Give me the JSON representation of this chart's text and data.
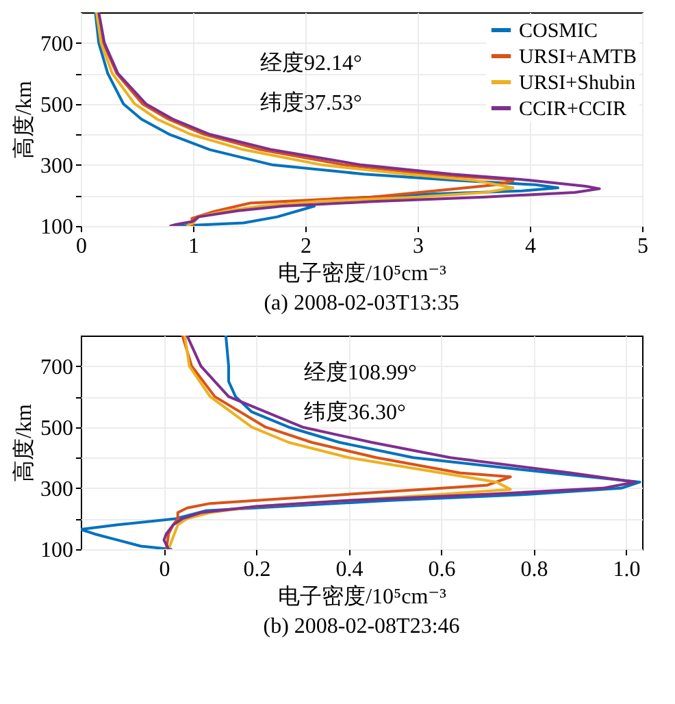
{
  "chart_data": [
    {
      "type": "line",
      "title": "(a) 2008-02-03T13:35",
      "xlabel": "电子密度/10⁵cm⁻³",
      "ylabel": "高度/km",
      "annotations": [
        "经度92.14°",
        "纬度37.53°"
      ],
      "xlim": [
        0,
        5
      ],
      "xticks": [
        0,
        1,
        2,
        3,
        4,
        5
      ],
      "ylim": [
        100,
        800
      ],
      "yticks": [
        100,
        {
          "value": 200,
          "label": null
        },
        300,
        {
          "value": 400,
          "label": null
        },
        500,
        {
          "value": 600,
          "label": null
        },
        700
      ],
      "grid": true,
      "legend": "top right",
      "line_style": "solid",
      "marker": "none",
      "series": [
        {
          "name": "COSMIC",
          "color": "#0072bd",
          "x": [
            0.85,
            1.45,
            1.75,
            2.08,
            1.92,
            1.92,
            2.32,
            3.13,
            3.93,
            4.25,
            4.05,
            3.33,
            2.52,
            1.71,
            1.15,
            0.79,
            0.54,
            0.38,
            0.24,
            0.16,
            0.13
          ],
          "values": [
            100,
            110,
            130,
            165,
            172,
            180,
            190,
            205,
            215,
            225,
            235,
            250,
            270,
            300,
            350,
            400,
            450,
            500,
            600,
            700,
            800
          ]
        },
        {
          "name": "URSI+AMTB",
          "color": "#d95319",
          "x": [
            1.0,
            0.99,
            1.19,
            1.51,
            2.6,
            3.7,
            3.85,
            3.8,
            3.1,
            2.35,
            1.6,
            1.1,
            0.78,
            0.55,
            0.32,
            0.2,
            0.15
          ],
          "values": [
            100,
            125,
            148,
            175,
            195,
            235,
            248,
            252,
            270,
            300,
            350,
            400,
            450,
            500,
            600,
            700,
            800
          ]
        },
        {
          "name": "URSI+Shubin",
          "color": "#edb120",
          "x": [
            0.95,
            1.0,
            1.05,
            1.3,
            1.6,
            2.1,
            3.0,
            3.6,
            3.85,
            3.5,
            2.9,
            2.15,
            1.45,
            0.98,
            0.68,
            0.48,
            0.28,
            0.18,
            0.14
          ],
          "values": [
            100,
            110,
            130,
            150,
            165,
            180,
            195,
            210,
            225,
            250,
            270,
            300,
            350,
            400,
            450,
            500,
            600,
            700,
            800
          ]
        },
        {
          "name": "CCIR+CCIR",
          "color": "#7e2f8e",
          "x": [
            0.8,
            0.85,
            1.0,
            1.05,
            1.4,
            1.8,
            2.6,
            3.6,
            4.4,
            4.62,
            4.5,
            4.0,
            3.3,
            2.5,
            1.7,
            1.15,
            0.82,
            0.58,
            0.33,
            0.21,
            0.16
          ],
          "values": [
            100,
            105,
            115,
            130,
            150,
            165,
            180,
            195,
            210,
            222,
            230,
            250,
            270,
            300,
            350,
            400,
            450,
            500,
            600,
            700,
            800
          ]
        }
      ]
    },
    {
      "type": "line",
      "title": "(b) 2008-02-08T23:46",
      "xlabel": "电子密度/10⁵cm⁻³",
      "ylabel": "高度/km",
      "annotations": [
        "经度108.99°",
        "纬度36.30°"
      ],
      "xlim": [
        -0.18,
        1.035
      ],
      "xticks": [
        0,
        0.2,
        0.4,
        0.6,
        0.8,
        {
          "value": 1,
          "label": "1.0"
        }
      ],
      "ylim": [
        100,
        800
      ],
      "yticks": [
        100,
        {
          "value": 200,
          "label": null
        },
        300,
        {
          "value": 400,
          "label": null
        },
        500,
        {
          "value": 600,
          "label": null
        },
        700
      ],
      "grid": true,
      "legend": "top right",
      "line_style": "solid",
      "marker": "none",
      "series": [
        {
          "name": "COSMIC",
          "color": "#0072bd",
          "x": [
            0.015,
            -0.05,
            -0.1,
            -0.15,
            -0.18,
            -0.1,
            0.025,
            0.09,
            0.49,
            0.79,
            0.99,
            1.03,
            0.84,
            0.54,
            0.38,
            0.27,
            0.19,
            0.155,
            0.14,
            0.14,
            0.134
          ],
          "values": [
            100,
            110,
            130,
            150,
            165,
            180,
            200,
            226,
            260,
            280,
            300,
            320,
            350,
            400,
            450,
            500,
            550,
            600,
            650,
            700,
            800
          ]
        },
        {
          "name": "URSI+AMTB",
          "color": "#d95319",
          "x": [
            0.005,
            0.01,
            0.02,
            0.03,
            0.03,
            0.05,
            0.1,
            0.3,
            0.5,
            0.7,
            0.75,
            0.64,
            0.46,
            0.32,
            0.22,
            0.11,
            0.06,
            0.04
          ],
          "values": [
            100,
            150,
            180,
            200,
            220,
            235,
            250,
            270,
            290,
            310,
            337,
            350,
            400,
            450,
            500,
            600,
            700,
            800
          ]
        },
        {
          "name": "URSI+Shubin",
          "color": "#edb120",
          "x": [
            0.01,
            0.03,
            0.05,
            0.1,
            0.2,
            0.4,
            0.6,
            0.75,
            0.72,
            0.6,
            0.4,
            0.27,
            0.19,
            0.1,
            0.055,
            0.045
          ],
          "values": [
            100,
            180,
            200,
            220,
            240,
            260,
            280,
            296,
            320,
            350,
            400,
            450,
            500,
            600,
            700,
            800
          ]
        },
        {
          "name": "CCIR+CCIR",
          "color": "#7e2f8e",
          "x": [
            0.01,
            0.0,
            0.005,
            0.02,
            0.04,
            0.08,
            0.2,
            0.4,
            0.7,
            0.95,
            1.02,
            0.88,
            0.62,
            0.45,
            0.3,
            0.14,
            0.08,
            0.05
          ],
          "values": [
            100,
            130,
            150,
            180,
            200,
            220,
            240,
            260,
            280,
            300,
            320,
            350,
            400,
            450,
            500,
            600,
            700,
            800
          ]
        }
      ]
    }
  ]
}
